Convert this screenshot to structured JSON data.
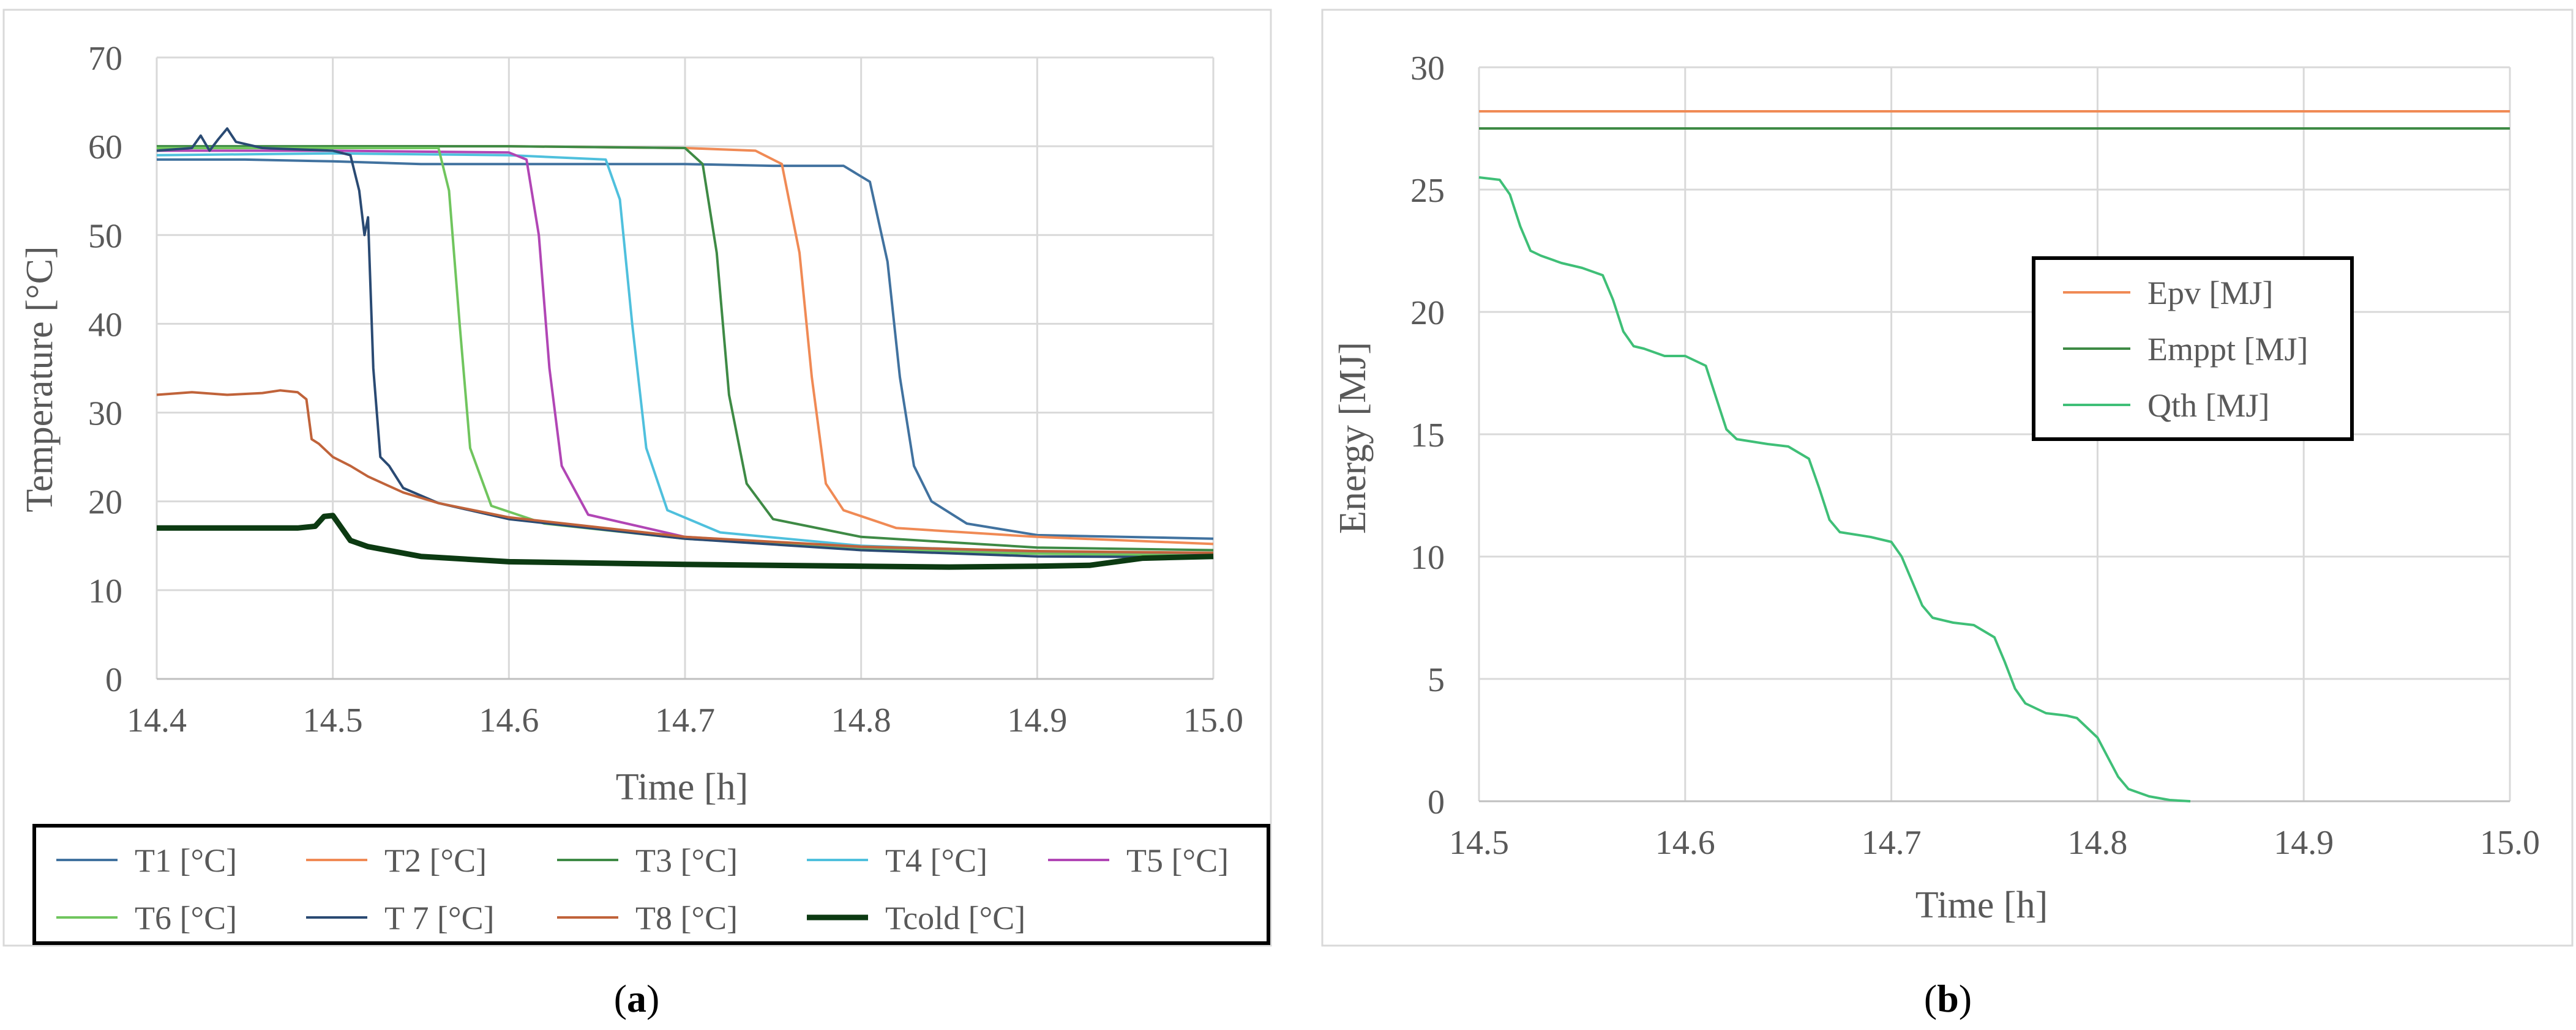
{
  "chart_data": [
    {
      "type": "line",
      "panel_label": "a",
      "xlabel": "Time [h]",
      "ylabel": "Temperature [°C]",
      "xlim": [
        14.4,
        15.0
      ],
      "ylim": [
        0,
        70
      ],
      "x_ticks": [
        "14.4",
        "14.5",
        "14.6",
        "14.7",
        "14.8",
        "14.9",
        "15.0"
      ],
      "y_ticks": [
        "0",
        "10",
        "20",
        "30",
        "40",
        "50",
        "60",
        "70"
      ],
      "grid": true,
      "legend_position": "bottom",
      "series": [
        {
          "name": "T1 [°C]",
          "color": "#41729f",
          "width": 4,
          "points": [
            [
              14.4,
              58.5
            ],
            [
              14.45,
              58.5
            ],
            [
              14.5,
              58.3
            ],
            [
              14.55,
              58.0
            ],
            [
              14.6,
              58.0
            ],
            [
              14.65,
              58.0
            ],
            [
              14.7,
              58.0
            ],
            [
              14.75,
              57.8
            ],
            [
              14.79,
              57.8
            ],
            [
              14.805,
              56
            ],
            [
              14.815,
              47
            ],
            [
              14.822,
              34
            ],
            [
              14.83,
              24
            ],
            [
              14.84,
              20
            ],
            [
              14.86,
              17.5
            ],
            [
              14.9,
              16.2
            ],
            [
              15.0,
              15.8
            ]
          ]
        },
        {
          "name": "T2 [°C]",
          "color": "#f08a55",
          "width": 4,
          "points": [
            [
              14.4,
              59.8
            ],
            [
              14.5,
              60.0
            ],
            [
              14.6,
              60.0
            ],
            [
              14.7,
              59.8
            ],
            [
              14.74,
              59.5
            ],
            [
              14.755,
              58
            ],
            [
              14.765,
              48
            ],
            [
              14.772,
              34
            ],
            [
              14.78,
              22
            ],
            [
              14.79,
              19
            ],
            [
              14.82,
              17
            ],
            [
              14.9,
              16
            ],
            [
              15.0,
              15.2
            ]
          ]
        },
        {
          "name": "T3 [°C]",
          "color": "#3e8a45",
          "width": 4,
          "points": [
            [
              14.4,
              60.0
            ],
            [
              14.5,
              60.0
            ],
            [
              14.6,
              60.0
            ],
            [
              14.7,
              59.8
            ],
            [
              14.71,
              58
            ],
            [
              14.718,
              48
            ],
            [
              14.725,
              32
            ],
            [
              14.735,
              22
            ],
            [
              14.75,
              18
            ],
            [
              14.8,
              16
            ],
            [
              14.9,
              14.8
            ],
            [
              15.0,
              14.5
            ]
          ]
        },
        {
          "name": "T4 [°C]",
          "color": "#4fc0dd",
          "width": 4,
          "points": [
            [
              14.4,
              59.0
            ],
            [
              14.5,
              59.2
            ],
            [
              14.6,
              59.0
            ],
            [
              14.655,
              58.5
            ],
            [
              14.663,
              54
            ],
            [
              14.67,
              40
            ],
            [
              14.678,
              26
            ],
            [
              14.69,
              19
            ],
            [
              14.72,
              16.5
            ],
            [
              14.8,
              15
            ],
            [
              14.9,
              14.3
            ],
            [
              15.0,
              14.0
            ]
          ]
        },
        {
          "name": "T5 [°C]",
          "color": "#b146b5",
          "width": 4,
          "points": [
            [
              14.4,
              59.5
            ],
            [
              14.5,
              59.5
            ],
            [
              14.6,
              59.3
            ],
            [
              14.61,
              58.5
            ],
            [
              14.617,
              50
            ],
            [
              14.623,
              35
            ],
            [
              14.63,
              24
            ],
            [
              14.645,
              18.5
            ],
            [
              14.7,
              16
            ],
            [
              14.8,
              14.8
            ],
            [
              14.9,
              14.2
            ],
            [
              15.0,
              14.0
            ]
          ]
        },
        {
          "name": "T6 [°C]",
          "color": "#70c55e",
          "width": 4,
          "points": [
            [
              14.4,
              59.8
            ],
            [
              14.5,
              59.8
            ],
            [
              14.56,
              59.8
            ],
            [
              14.566,
              55
            ],
            [
              14.572,
              40
            ],
            [
              14.578,
              26
            ],
            [
              14.59,
              19.5
            ],
            [
              14.62,
              17.5
            ],
            [
              14.7,
              15.8
            ],
            [
              14.8,
              14.6
            ],
            [
              14.9,
              14.1
            ],
            [
              15.0,
              13.9
            ]
          ]
        },
        {
          "name": "T 7 [°C]",
          "color": "#2a4a73",
          "width": 4,
          "points": [
            [
              14.4,
              59.5
            ],
            [
              14.42,
              59.8
            ],
            [
              14.425,
              61.2
            ],
            [
              14.43,
              59.5
            ],
            [
              14.435,
              60.8
            ],
            [
              14.44,
              62.0
            ],
            [
              14.445,
              60.5
            ],
            [
              14.46,
              59.8
            ],
            [
              14.5,
              59.5
            ],
            [
              14.51,
              59.0
            ],
            [
              14.515,
              55
            ],
            [
              14.518,
              50
            ],
            [
              14.52,
              52
            ],
            [
              14.523,
              35
            ],
            [
              14.527,
              25
            ],
            [
              14.532,
              24
            ],
            [
              14.54,
              21.5
            ],
            [
              14.56,
              19.8
            ],
            [
              14.6,
              18
            ],
            [
              14.7,
              15.8
            ],
            [
              14.8,
              14.5
            ],
            [
              14.9,
              13.8
            ],
            [
              15.0,
              13.7
            ]
          ]
        },
        {
          "name": "T8 [°C]",
          "color": "#c0633a",
          "width": 4,
          "points": [
            [
              14.4,
              32.0
            ],
            [
              14.42,
              32.3
            ],
            [
              14.44,
              32.0
            ],
            [
              14.46,
              32.2
            ],
            [
              14.47,
              32.5
            ],
            [
              14.48,
              32.3
            ],
            [
              14.485,
              31.5
            ],
            [
              14.488,
              27
            ],
            [
              14.492,
              26.5
            ],
            [
              14.5,
              25
            ],
            [
              14.51,
              24
            ],
            [
              14.52,
              22.8
            ],
            [
              14.54,
              21
            ],
            [
              14.56,
              19.8
            ],
            [
              14.6,
              18.2
            ],
            [
              14.7,
              16.0
            ],
            [
              14.8,
              14.9
            ],
            [
              14.9,
              14.4
            ],
            [
              15.0,
              14.2
            ]
          ]
        },
        {
          "name": "Tcold [°C]",
          "color": "#0c3a12",
          "width": 9,
          "points": [
            [
              14.4,
              17.0
            ],
            [
              14.48,
              17.0
            ],
            [
              14.49,
              17.2
            ],
            [
              14.495,
              18.3
            ],
            [
              14.5,
              18.4
            ],
            [
              14.505,
              17
            ],
            [
              14.51,
              15.6
            ],
            [
              14.52,
              14.9
            ],
            [
              14.55,
              13.8
            ],
            [
              14.6,
              13.2
            ],
            [
              14.7,
              12.9
            ],
            [
              14.8,
              12.7
            ],
            [
              14.85,
              12.6
            ],
            [
              14.9,
              12.7
            ],
            [
              14.93,
              12.8
            ],
            [
              14.96,
              13.6
            ],
            [
              15.0,
              13.8
            ]
          ]
        }
      ]
    },
    {
      "type": "line",
      "panel_label": "b",
      "xlabel": "Time [h]",
      "ylabel": "Energy [MJ]",
      "xlim": [
        14.5,
        15.0
      ],
      "ylim": [
        0,
        30
      ],
      "x_ticks": [
        "14.5",
        "14.6",
        "14.7",
        "14.8",
        "14.9",
        "15.0"
      ],
      "y_ticks": [
        "0",
        "5",
        "10",
        "15",
        "20",
        "25",
        "30"
      ],
      "grid": true,
      "legend_position": "right",
      "series": [
        {
          "name": "Epv [MJ]",
          "color": "#f08a55",
          "width": 4,
          "points": [
            [
              14.5,
              28.2
            ],
            [
              15.0,
              28.2
            ]
          ]
        },
        {
          "name": "Emppt [MJ]",
          "color": "#3e8a45",
          "width": 4,
          "points": [
            [
              14.5,
              27.5
            ],
            [
              15.0,
              27.5
            ]
          ]
        },
        {
          "name": "Qth [MJ]",
          "color": "#3fbf77",
          "width": 4,
          "points": [
            [
              14.5,
              25.5
            ],
            [
              14.51,
              25.4
            ],
            [
              14.515,
              24.8
            ],
            [
              14.52,
              23.5
            ],
            [
              14.525,
              22.5
            ],
            [
              14.53,
              22.3
            ],
            [
              14.54,
              22.0
            ],
            [
              14.55,
              21.8
            ],
            [
              14.56,
              21.5
            ],
            [
              14.565,
              20.5
            ],
            [
              14.57,
              19.2
            ],
            [
              14.575,
              18.6
            ],
            [
              14.58,
              18.5
            ],
            [
              14.59,
              18.2
            ],
            [
              14.6,
              18.2
            ],
            [
              14.61,
              17.8
            ],
            [
              14.615,
              16.5
            ],
            [
              14.62,
              15.2
            ],
            [
              14.625,
              14.8
            ],
            [
              14.64,
              14.6
            ],
            [
              14.65,
              14.5
            ],
            [
              14.66,
              14.0
            ],
            [
              14.665,
              12.8
            ],
            [
              14.67,
              11.5
            ],
            [
              14.675,
              11.0
            ],
            [
              14.69,
              10.8
            ],
            [
              14.7,
              10.6
            ],
            [
              14.705,
              10.0
            ],
            [
              14.71,
              9.0
            ],
            [
              14.715,
              8.0
            ],
            [
              14.72,
              7.5
            ],
            [
              14.73,
              7.3
            ],
            [
              14.74,
              7.2
            ],
            [
              14.75,
              6.7
            ],
            [
              14.755,
              5.7
            ],
            [
              14.76,
              4.6
            ],
            [
              14.765,
              4.0
            ],
            [
              14.775,
              3.6
            ],
            [
              14.785,
              3.5
            ],
            [
              14.79,
              3.4
            ],
            [
              14.8,
              2.6
            ],
            [
              14.805,
              1.8
            ],
            [
              14.81,
              1.0
            ],
            [
              14.815,
              0.5
            ],
            [
              14.825,
              0.2
            ],
            [
              14.835,
              0.05
            ],
            [
              14.845,
              0.0
            ]
          ]
        }
      ]
    }
  ]
}
